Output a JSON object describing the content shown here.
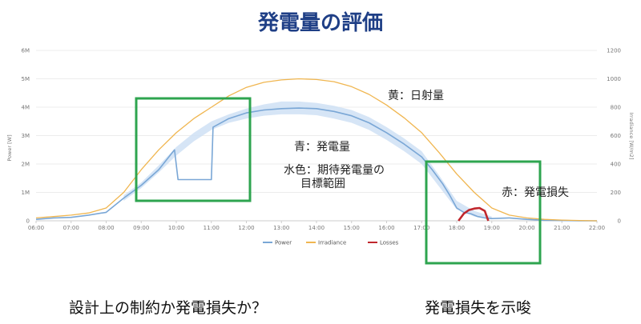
{
  "title": "発電量の評価",
  "annotations": {
    "irradiance": "黄：日射量",
    "power": "青：発電量",
    "expected_line1": "水色：期待発電量の",
    "expected_line2": "目標範囲",
    "losses": "赤：発電損失"
  },
  "captions": {
    "left": "設計上の制約か発電損失か？",
    "right": "発電損失を示唆"
  },
  "colors": {
    "power": "#7aa7d6",
    "band": "#cfe0f4",
    "irradiance": "#f0b650",
    "losses": "#c0272d",
    "highlight": "#2ea44f",
    "title": "#1f3f86"
  },
  "chart_data": {
    "type": "line",
    "x_ticks": [
      "06:00",
      "07:00",
      "08:00",
      "09:00",
      "10:00",
      "11:00",
      "12:00",
      "13:00",
      "14:00",
      "15:00",
      "16:00",
      "17:00",
      "18:00",
      "19:00",
      "20:00",
      "21:00",
      "22:00"
    ],
    "y_left_ticks": [
      "0",
      "1M",
      "2M",
      "3M",
      "4M",
      "5M",
      "6M"
    ],
    "y_right_ticks": [
      "0",
      "200",
      "400",
      "600",
      "800",
      "1000",
      "1200"
    ],
    "ylabel_left": "Power [W]",
    "ylabel_right": "Irradiance [W/m2]",
    "ylim_left": [
      0,
      6
    ],
    "ylim_right": [
      0,
      1200
    ],
    "legend_position": "bottom-center",
    "series": [
      {
        "name": "Power",
        "axis": "left",
        "x": [
          6.0,
          6.5,
          7.0,
          7.5,
          8.0,
          8.5,
          9.0,
          9.5,
          9.95,
          10.05,
          10.5,
          11.0,
          11.05,
          11.5,
          12.0,
          12.5,
          13.0,
          13.5,
          14.0,
          14.5,
          15.0,
          15.5,
          16.0,
          16.5,
          17.0,
          17.3,
          17.6,
          17.8,
          18.0,
          18.2,
          18.4,
          18.6,
          18.8,
          19.0,
          19.5,
          20.0,
          20.5,
          21.0,
          21.5,
          22.0
        ],
        "values": [
          0.05,
          0.1,
          0.12,
          0.2,
          0.3,
          0.8,
          1.25,
          1.8,
          2.5,
          1.45,
          1.45,
          1.45,
          3.3,
          3.6,
          3.8,
          3.9,
          3.95,
          3.97,
          3.95,
          3.85,
          3.7,
          3.45,
          3.1,
          2.7,
          2.25,
          1.8,
          1.3,
          0.9,
          0.45,
          0.3,
          0.25,
          0.15,
          0.1,
          0.08,
          0.1,
          0.05,
          0.02,
          0.01,
          0.0,
          0.0
        ]
      },
      {
        "name": "Irradiance",
        "axis": "right",
        "x": [
          6.0,
          6.5,
          7.0,
          7.5,
          8.0,
          8.5,
          9.0,
          9.5,
          10.0,
          10.5,
          11.0,
          11.5,
          12.0,
          12.5,
          13.0,
          13.5,
          14.0,
          14.5,
          15.0,
          15.5,
          16.0,
          16.5,
          17.0,
          17.5,
          18.0,
          18.5,
          19.0,
          19.5,
          20.0,
          20.5,
          21.0,
          21.5,
          22.0
        ],
        "values": [
          20,
          30,
          40,
          55,
          90,
          200,
          360,
          500,
          620,
          720,
          800,
          880,
          940,
          975,
          992,
          1000,
          995,
          980,
          945,
          890,
          815,
          725,
          620,
          480,
          330,
          200,
          90,
          40,
          20,
          10,
          5,
          2,
          0
        ]
      },
      {
        "name": "Losses",
        "axis": "left",
        "x": [
          18.05,
          18.2,
          18.35,
          18.5,
          18.65,
          18.8,
          18.9
        ],
        "values": [
          0.0,
          0.25,
          0.38,
          0.43,
          0.45,
          0.35,
          0.0
        ]
      },
      {
        "name": "",
        "role": "expected-range",
        "axis": "left",
        "x": [
          8.5,
          9.0,
          9.5,
          10.0,
          10.5,
          11.0,
          11.5,
          12.0,
          12.5,
          13.0,
          13.5,
          14.0,
          14.5,
          15.0,
          15.5,
          16.0,
          16.5,
          17.0,
          17.5,
          18.0,
          18.5,
          19.0
        ],
        "low": [
          0.7,
          1.15,
          1.7,
          2.3,
          2.8,
          3.2,
          3.45,
          3.6,
          3.7,
          3.75,
          3.75,
          3.72,
          3.6,
          3.45,
          3.2,
          2.85,
          2.45,
          2.0,
          1.2,
          0.4,
          0.15,
          0.05
        ],
        "high": [
          0.9,
          1.35,
          1.95,
          2.6,
          3.1,
          3.5,
          3.75,
          3.95,
          4.1,
          4.2,
          4.2,
          4.15,
          4.05,
          3.9,
          3.65,
          3.3,
          2.9,
          2.45,
          1.6,
          0.7,
          0.35,
          0.15
        ]
      }
    ]
  }
}
